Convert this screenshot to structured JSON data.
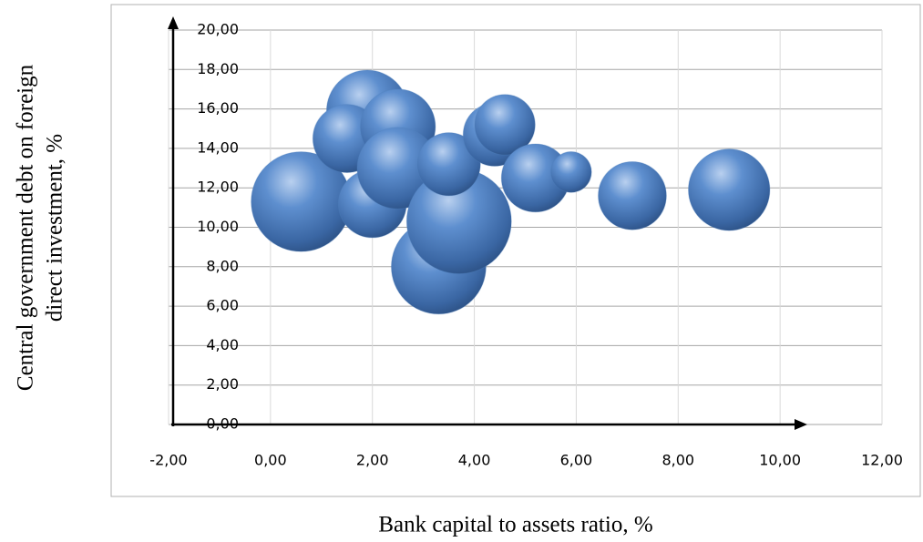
{
  "chart_data": {
    "type": "bubble",
    "xlabel": "Bank capital to assets ratio, %",
    "ylabel": [
      "Central government debt on foreign",
      "direct investment, %"
    ],
    "color": "#4f81bd",
    "grid": true,
    "xlim": [
      -2,
      12
    ],
    "ylim": [
      0,
      20
    ],
    "xticks": [
      {
        "value": -2,
        "label": "-2,00"
      },
      {
        "value": 0,
        "label": "0,00"
      },
      {
        "value": 2,
        "label": "2,00"
      },
      {
        "value": 4,
        "label": "4,00"
      },
      {
        "value": 6,
        "label": "6,00"
      },
      {
        "value": 8,
        "label": "8,00"
      },
      {
        "value": 10,
        "label": "10,00"
      },
      {
        "value": 12,
        "label": "12,00"
      }
    ],
    "yticks": [
      {
        "value": 0,
        "label": "0,00"
      },
      {
        "value": 2,
        "label": "2,00"
      },
      {
        "value": 4,
        "label": "4,00"
      },
      {
        "value": 6,
        "label": "6,00"
      },
      {
        "value": 8,
        "label": "8,00"
      },
      {
        "value": 10,
        "label": "10,00"
      },
      {
        "value": 12,
        "label": "12,00"
      },
      {
        "value": 14,
        "label": "14,00"
      },
      {
        "value": 16,
        "label": "16,00"
      },
      {
        "value": 18,
        "label": "18,00"
      },
      {
        "value": 20,
        "label": "20,00"
      }
    ],
    "x": [
      0.6,
      1.9,
      1.5,
      2.0,
      2.5,
      2.5,
      3.3,
      3.7,
      3.5,
      4.4,
      4.6,
      5.2,
      5.9,
      7.1,
      9.0
    ],
    "values": [
      11.3,
      15.9,
      14.5,
      11.2,
      15.1,
      13.0,
      8.0,
      10.3,
      13.2,
      14.7,
      15.2,
      12.5,
      12.8,
      11.6,
      11.9
    ],
    "sizes": [
      30,
      20,
      14,
      14,
      17,
      20,
      27,
      33,
      12,
      12,
      11,
      14,
      5,
      14,
      20
    ]
  }
}
